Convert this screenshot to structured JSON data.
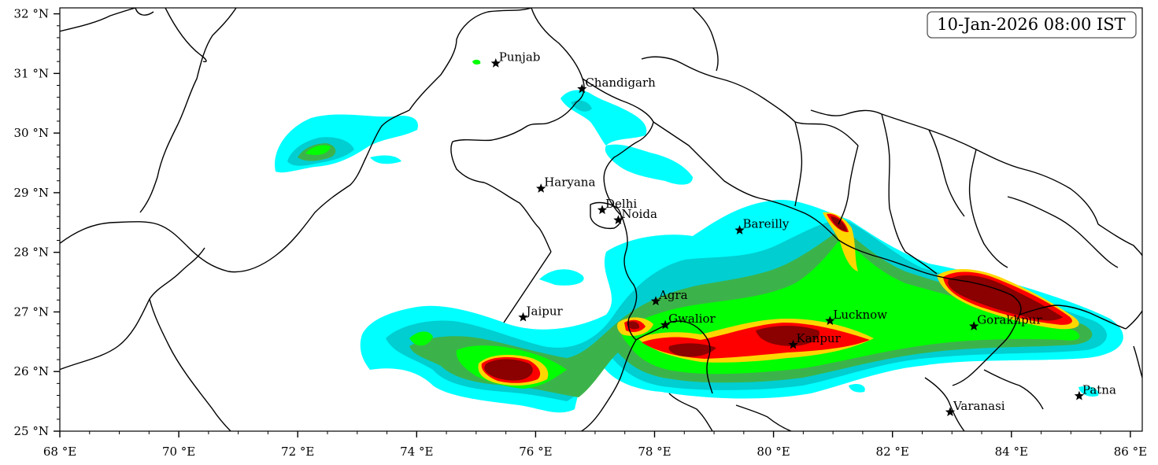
{
  "timestamp": "10-Jan-2026 08:00 IST",
  "map": {
    "lon_range": [
      68,
      86.2
    ],
    "lat_range": [
      25,
      32.1
    ],
    "lon_ticks": [
      {
        "value": 68,
        "label": "68 °E"
      },
      {
        "value": 70,
        "label": "70 °E"
      },
      {
        "value": 72,
        "label": "72 °E"
      },
      {
        "value": 74,
        "label": "74 °E"
      },
      {
        "value": 76,
        "label": "76 °E"
      },
      {
        "value": 78,
        "label": "78 °E"
      },
      {
        "value": 80,
        "label": "80 °E"
      },
      {
        "value": 82,
        "label": "82 °E"
      },
      {
        "value": 84,
        "label": "84 °E"
      },
      {
        "value": 86,
        "label": "86 °E"
      }
    ],
    "lat_ticks": [
      {
        "value": 25,
        "label": "25 °N"
      },
      {
        "value": 26,
        "label": "26 °N"
      },
      {
        "value": 27,
        "label": "27 °N"
      },
      {
        "value": 28,
        "label": "28 °N"
      },
      {
        "value": 29,
        "label": "29 °N"
      },
      {
        "value": 30,
        "label": "30 °N"
      },
      {
        "value": 31,
        "label": "31 °N"
      },
      {
        "value": 32,
        "label": "32 °N"
      }
    ],
    "colors": {
      "level1": "#00ffff",
      "level2": "#00ced1",
      "level3": "#3cb34a",
      "level4": "#00ff00",
      "level5": "#ffd700",
      "level6": "#ff0000",
      "level7": "#8b0000"
    }
  },
  "cities": [
    {
      "id": "punjab",
      "name": "Punjab",
      "lon": 75.33,
      "lat": 31.17
    },
    {
      "id": "chandigarh",
      "name": "Chandigarh",
      "lon": 76.78,
      "lat": 30.74
    },
    {
      "id": "haryana",
      "name": "Haryana",
      "lon": 76.09,
      "lat": 29.07
    },
    {
      "id": "delhi",
      "name": "Delhi",
      "lon": 77.12,
      "lat": 28.71
    },
    {
      "id": "noida",
      "name": "Noida",
      "lon": 77.39,
      "lat": 28.54
    },
    {
      "id": "bareilly",
      "name": "Bareilly",
      "lon": 79.43,
      "lat": 28.37
    },
    {
      "id": "agra",
      "name": "Agra",
      "lon": 78.02,
      "lat": 27.18
    },
    {
      "id": "jaipur",
      "name": "Jaipur",
      "lon": 75.79,
      "lat": 26.91
    },
    {
      "id": "gwalior",
      "name": "Gwalior",
      "lon": 78.18,
      "lat": 26.78
    },
    {
      "id": "lucknow",
      "name": "Lucknow",
      "lon": 80.95,
      "lat": 26.85
    },
    {
      "id": "kanpur",
      "name": "Kanpur",
      "lon": 80.33,
      "lat": 26.45
    },
    {
      "id": "gorakhpur",
      "name": "Gorakhpur",
      "lon": 83.37,
      "lat": 26.76
    },
    {
      "id": "varanasi",
      "name": "Varanasi",
      "lon": 82.97,
      "lat": 25.32
    },
    {
      "id": "patna",
      "name": "Patna",
      "lon": 85.14,
      "lat": 25.59
    }
  ]
}
